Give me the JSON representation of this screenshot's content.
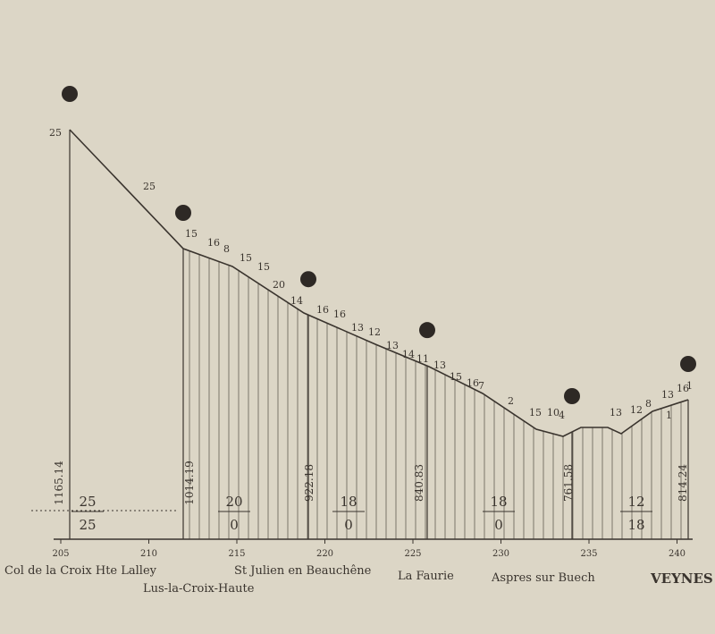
{
  "km_ticks": [
    "205",
    "210",
    "215",
    "220",
    "225",
    "230",
    "235",
    "240"
  ],
  "stations": [
    {
      "name": "Col de la Croix Hte Lalley",
      "elevation": "1165.14"
    },
    {
      "name": "Lus-la-Croix-Haute",
      "elevation": "1014.19"
    },
    {
      "name": "St Julien en Beauchêne",
      "elevation": "922.18"
    },
    {
      "name": "La Faurie",
      "elevation": "840.83"
    },
    {
      "name": "Aspres sur Buech",
      "elevation": "761.58"
    },
    {
      "name": "VEYNES",
      "elevation": "814.24"
    }
  ],
  "sections": [
    {
      "top": "25",
      "bottom": "25"
    },
    {
      "top": "20",
      "bottom": "0"
    },
    {
      "top": "18",
      "bottom": "0"
    },
    {
      "top": "18",
      "bottom": "0"
    },
    {
      "top": "12",
      "bottom": "18"
    }
  ],
  "gradients": [
    "25",
    "25",
    "15",
    "16",
    "8",
    "15",
    "15",
    "20",
    "14",
    "16",
    "16",
    "13",
    "12",
    "13",
    "14",
    "11",
    "13",
    "15",
    "16",
    "7",
    "2",
    "15",
    "10",
    "4",
    "13",
    "12",
    "8",
    "13",
    "16",
    "1",
    "1"
  ]
}
